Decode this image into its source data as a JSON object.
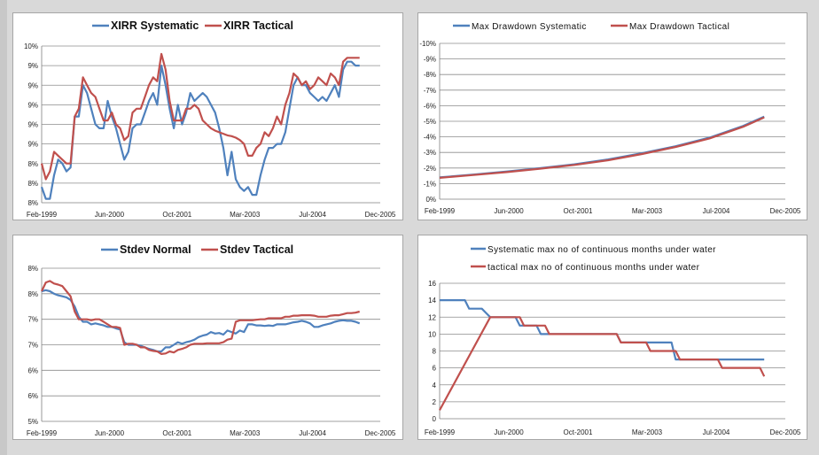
{
  "colors": {
    "systematic": "#4f81bd",
    "tactical": "#c0504d",
    "grid": "#8c8c8c",
    "axis": "#7f7f7f"
  },
  "chart_data": [
    {
      "type": "line",
      "id": "xirr",
      "x_labels": [
        "Feb-1999",
        "Jun-2000",
        "Oct-2001",
        "Mar-2003",
        "Jul-2004",
        "Dec-2005"
      ],
      "xlim": [
        0,
        82
      ],
      "y_labels": [
        "8%",
        "8%",
        "8%",
        "9%",
        "9%",
        "9%",
        "9%",
        "9%",
        "10%"
      ],
      "ylim": [
        7.8,
        9.8
      ],
      "legend_position": "top",
      "series": [
        {
          "name": "XIRR Systematic",
          "x": [
            0,
            1,
            2,
            3,
            4,
            5,
            6,
            7,
            8,
            9,
            10,
            11,
            12,
            13,
            14,
            15,
            16,
            17,
            18,
            19,
            20,
            21,
            22,
            23,
            24,
            25,
            26,
            27,
            28,
            29,
            30,
            31,
            32,
            33,
            34,
            35,
            36,
            37,
            38,
            39,
            40,
            41,
            42,
            43,
            44,
            45,
            46,
            47,
            48,
            49,
            50,
            51,
            52,
            53,
            54,
            55,
            56,
            57,
            58,
            59,
            60,
            61,
            62,
            63,
            64,
            65,
            66,
            67,
            68,
            69,
            70,
            71,
            72,
            73,
            74,
            75,
            76,
            77
          ],
          "y": [
            8.0,
            7.85,
            7.85,
            8.15,
            8.35,
            8.3,
            8.2,
            8.25,
            8.9,
            8.9,
            9.3,
            9.2,
            9.0,
            8.8,
            8.75,
            8.75,
            9.1,
            8.9,
            8.75,
            8.55,
            8.35,
            8.45,
            8.75,
            8.8,
            8.8,
            8.95,
            9.1,
            9.2,
            9.05,
            9.55,
            9.3,
            9.0,
            8.75,
            9.05,
            8.8,
            8.95,
            9.2,
            9.1,
            9.15,
            9.2,
            9.15,
            9.05,
            8.95,
            8.75,
            8.5,
            8.15,
            8.45,
            8.1,
            8.0,
            7.95,
            8.0,
            7.9,
            7.9,
            8.15,
            8.35,
            8.5,
            8.5,
            8.55,
            8.55,
            8.7,
            9.0,
            9.3,
            9.4,
            9.3,
            9.3,
            9.2,
            9.15,
            9.1,
            9.15,
            9.1,
            9.2,
            9.3,
            9.15,
            9.5,
            9.6,
            9.6,
            9.55,
            9.55
          ]
        },
        {
          "name": "XIRR Tactical",
          "x": [
            0,
            1,
            2,
            3,
            4,
            5,
            6,
            7,
            8,
            9,
            10,
            11,
            12,
            13,
            14,
            15,
            16,
            17,
            18,
            19,
            20,
            21,
            22,
            23,
            24,
            25,
            26,
            27,
            28,
            29,
            30,
            31,
            32,
            33,
            34,
            35,
            36,
            37,
            38,
            39,
            40,
            41,
            42,
            43,
            44,
            45,
            46,
            47,
            48,
            49,
            50,
            51,
            52,
            53,
            54,
            55,
            56,
            57,
            58,
            59,
            60,
            61,
            62,
            63,
            64,
            65,
            66,
            67,
            68,
            69,
            70,
            71,
            72,
            73,
            74,
            75,
            76,
            77
          ],
          "y": [
            8.3,
            8.1,
            8.2,
            8.45,
            8.4,
            8.35,
            8.3,
            8.3,
            8.9,
            9.0,
            9.4,
            9.3,
            9.2,
            9.15,
            9.0,
            8.85,
            8.85,
            8.95,
            8.8,
            8.75,
            8.6,
            8.65,
            8.95,
            9.0,
            9.0,
            9.15,
            9.3,
            9.4,
            9.35,
            9.7,
            9.5,
            9.1,
            8.85,
            8.85,
            8.85,
            9.0,
            9.0,
            9.05,
            9.0,
            8.85,
            8.8,
            8.75,
            8.72,
            8.7,
            8.68,
            8.66,
            8.65,
            8.63,
            8.6,
            8.55,
            8.4,
            8.4,
            8.5,
            8.55,
            8.7,
            8.65,
            8.75,
            8.9,
            8.8,
            9.05,
            9.2,
            9.45,
            9.4,
            9.3,
            9.35,
            9.25,
            9.3,
            9.4,
            9.35,
            9.3,
            9.45,
            9.4,
            9.3,
            9.6,
            9.65,
            9.65,
            9.65,
            9.65
          ]
        }
      ]
    },
    {
      "type": "line",
      "id": "drawdown",
      "x_labels": [
        "Feb-1999",
        "Jun-2000",
        "Oct-2001",
        "Mar-2003",
        "Jul-2004",
        "Dec-2005"
      ],
      "xlim": [
        0,
        82
      ],
      "y_labels": [
        "0%",
        "-1%",
        "-2%",
        "-3%",
        "-4%",
        "-5%",
        "-6%",
        "-7%",
        "-8%",
        "-9%",
        "-10%"
      ],
      "ylim": [
        -10,
        0
      ],
      "legend_position": "top",
      "series": [
        {
          "name": "Max Drawdown Systematic",
          "x": [
            0,
            8,
            16,
            24,
            32,
            40,
            48,
            56,
            64,
            72,
            77
          ],
          "y": [
            -8.6,
            -8.42,
            -8.22,
            -8.0,
            -7.76,
            -7.45,
            -7.05,
            -6.6,
            -6.05,
            -5.3,
            -4.7
          ]
        },
        {
          "name": "Max Drawdown Tactical",
          "x": [
            0,
            8,
            16,
            24,
            32,
            40,
            48,
            56,
            64,
            72,
            77
          ],
          "y": [
            -8.63,
            -8.45,
            -8.26,
            -8.04,
            -7.8,
            -7.5,
            -7.1,
            -6.65,
            -6.1,
            -5.35,
            -4.75
          ]
        }
      ]
    },
    {
      "type": "line",
      "id": "stdev",
      "x_labels": [
        "Feb-1999",
        "Jun-2000",
        "Oct-2001",
        "Mar-2003",
        "Jul-2004",
        "Dec-2005"
      ],
      "xlim": [
        0,
        82
      ],
      "y_labels": [
        "5%",
        "6%",
        "6%",
        "7%",
        "7%",
        "8%",
        "8%"
      ],
      "ylim": [
        5.0,
        8.0
      ],
      "legend_position": "top",
      "series": [
        {
          "name": "Stdev Normal",
          "x": [
            0,
            1,
            2,
            3,
            4,
            5,
            6,
            7,
            8,
            9,
            10,
            11,
            12,
            13,
            14,
            15,
            16,
            17,
            18,
            19,
            20,
            21,
            22,
            23,
            24,
            25,
            26,
            27,
            28,
            29,
            30,
            31,
            32,
            33,
            34,
            35,
            36,
            37,
            38,
            39,
            40,
            41,
            42,
            43,
            44,
            45,
            46,
            47,
            48,
            49,
            50,
            51,
            52,
            53,
            54,
            55,
            56,
            57,
            58,
            59,
            60,
            61,
            62,
            63,
            64,
            65,
            66,
            67,
            68,
            69,
            70,
            71,
            72,
            73,
            74,
            75,
            76,
            77
          ],
          "y": [
            7.55,
            7.57,
            7.55,
            7.5,
            7.47,
            7.45,
            7.43,
            7.38,
            7.25,
            7.05,
            6.95,
            6.95,
            6.9,
            6.92,
            6.9,
            6.88,
            6.85,
            6.85,
            6.82,
            6.8,
            6.55,
            6.5,
            6.5,
            6.5,
            6.48,
            6.45,
            6.42,
            6.4,
            6.37,
            6.37,
            6.45,
            6.45,
            6.5,
            6.55,
            6.52,
            6.55,
            6.57,
            6.6,
            6.65,
            6.68,
            6.7,
            6.75,
            6.72,
            6.73,
            6.7,
            6.78,
            6.75,
            6.72,
            6.78,
            6.75,
            6.9,
            6.9,
            6.88,
            6.88,
            6.87,
            6.88,
            6.87,
            6.9,
            6.9,
            6.9,
            6.92,
            6.94,
            6.95,
            6.97,
            6.95,
            6.92,
            6.85,
            6.85,
            6.88,
            6.9,
            6.92,
            6.95,
            6.97,
            6.98,
            6.97,
            6.97,
            6.95,
            6.92
          ]
        },
        {
          "name": "Stdev Tactical",
          "x": [
            0,
            1,
            2,
            3,
            4,
            5,
            6,
            7,
            8,
            9,
            10,
            11,
            12,
            13,
            14,
            15,
            16,
            17,
            18,
            19,
            20,
            21,
            22,
            23,
            24,
            25,
            26,
            27,
            28,
            29,
            30,
            31,
            32,
            33,
            34,
            35,
            36,
            37,
            38,
            39,
            40,
            41,
            42,
            43,
            44,
            45,
            46,
            47,
            48,
            49,
            50,
            51,
            52,
            53,
            54,
            55,
            56,
            57,
            58,
            59,
            60,
            61,
            62,
            63,
            64,
            65,
            66,
            67,
            68,
            69,
            70,
            71,
            72,
            73,
            74,
            75,
            76,
            77
          ],
          "y": [
            7.55,
            7.72,
            7.75,
            7.7,
            7.68,
            7.65,
            7.55,
            7.45,
            7.15,
            7.0,
            7.0,
            7.0,
            6.98,
            7.0,
            7.0,
            6.95,
            6.9,
            6.85,
            6.85,
            6.83,
            6.5,
            6.52,
            6.52,
            6.5,
            6.45,
            6.45,
            6.4,
            6.38,
            6.37,
            6.32,
            6.33,
            6.37,
            6.35,
            6.4,
            6.42,
            6.45,
            6.5,
            6.52,
            6.52,
            6.52,
            6.53,
            6.53,
            6.53,
            6.53,
            6.55,
            6.6,
            6.62,
            6.95,
            6.98,
            6.98,
            6.98,
            6.98,
            6.99,
            7.0,
            7.0,
            7.02,
            7.02,
            7.02,
            7.02,
            7.05,
            7.05,
            7.07,
            7.07,
            7.08,
            7.08,
            7.08,
            7.07,
            7.05,
            7.05,
            7.05,
            7.07,
            7.08,
            7.08,
            7.1,
            7.12,
            7.12,
            7.13,
            7.15
          ]
        }
      ]
    },
    {
      "type": "line",
      "id": "months_under_water",
      "x_labels": [
        "Feb-1999",
        "Jun-2000",
        "Oct-2001",
        "Mar-2003",
        "Jul-2004",
        "Dec-2005"
      ],
      "xlim": [
        0,
        82
      ],
      "y_labels": [
        "0",
        "2",
        "4",
        "6",
        "8",
        "10",
        "12",
        "14",
        "16"
      ],
      "ylim": [
        0,
        16
      ],
      "legend_position": "top",
      "series": [
        {
          "name": "Systematic max no of continuous months under water",
          "x": [
            0,
            6,
            7,
            10,
            11,
            12,
            13,
            18,
            19,
            23,
            24,
            30,
            31,
            42,
            43,
            55,
            56,
            72,
            73,
            77
          ],
          "y": [
            14,
            14,
            13,
            13,
            12.5,
            12,
            12,
            12,
            11,
            11,
            10,
            10,
            10,
            10,
            9,
            9,
            7,
            7,
            7,
            7
          ]
        },
        {
          "name": "tactical max no of continuous months under water",
          "x": [
            0,
            12,
            13,
            19,
            20,
            25,
            26,
            34,
            35,
            42,
            43,
            49,
            50,
            56,
            57,
            66,
            67,
            76,
            77
          ],
          "y": [
            1,
            12,
            12,
            12,
            11,
            11,
            10,
            10,
            10,
            10,
            9,
            9,
            8,
            8,
            7,
            7,
            6,
            6,
            5
          ]
        }
      ]
    }
  ]
}
